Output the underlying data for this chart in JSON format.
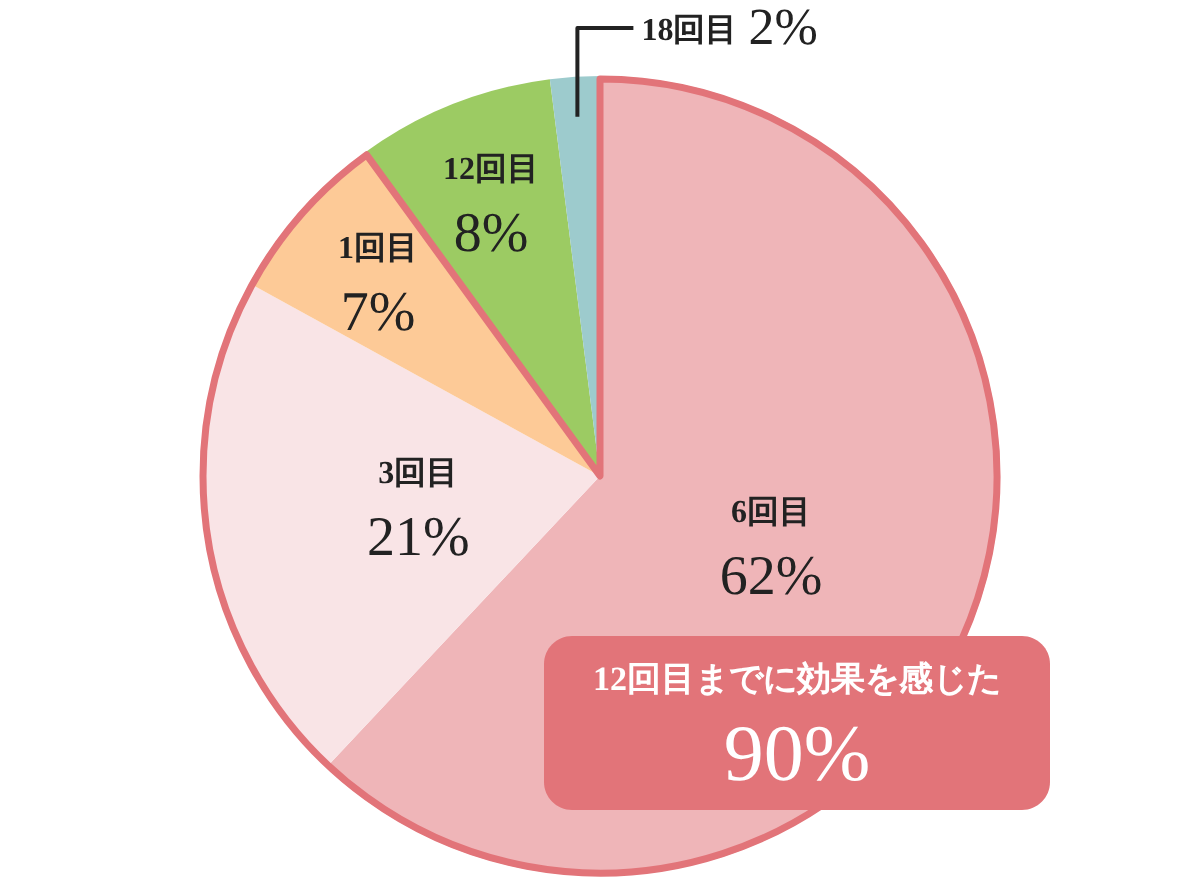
{
  "chart_data": {
    "type": "pie",
    "categories": [
      "6回目",
      "3回目",
      "1回目",
      "12回目",
      "18回目"
    ],
    "values": [
      62,
      21,
      7,
      8,
      2
    ],
    "colors": [
      "#efb5b8",
      "#f9e4e6",
      "#fdca97",
      "#9ccb63",
      "#9dcbcd"
    ],
    "value_labels": [
      "62%",
      "21%",
      "7%",
      "8%",
      "2%"
    ],
    "annotations": [
      {
        "text": "12回目までに効果を感じた\n90%",
        "x": "1回目"
      }
    ]
  }
}
